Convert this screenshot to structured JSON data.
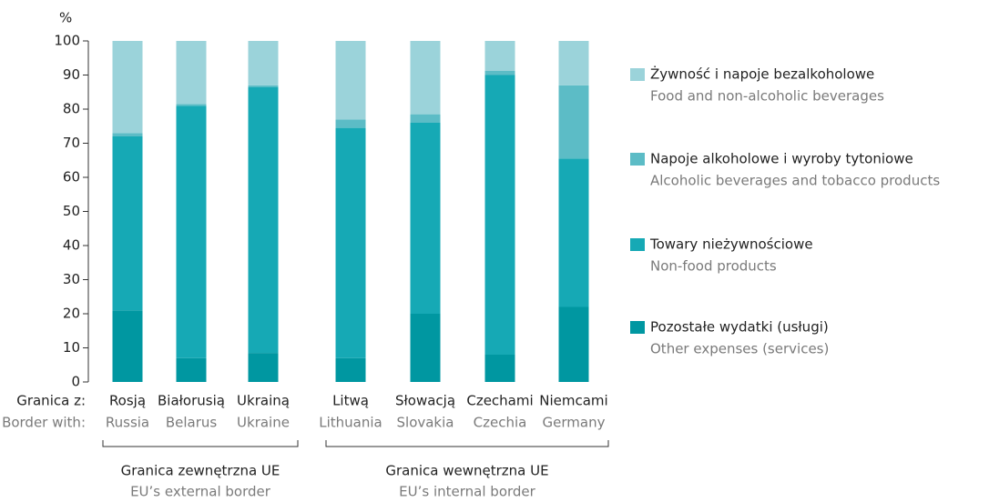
{
  "chart_data": {
    "type": "stacked_bar",
    "y_unit_label": "%",
    "categories": [
      "Rosją",
      "Białorusią",
      "Ukrainą",
      "Litwą",
      "Słowacją",
      "Czechami",
      "Niemcami"
    ],
    "categories_en": [
      "Russia",
      "Belarus",
      "Ukraine",
      "Lithuania",
      "Slovakia",
      "Czechia",
      "Germany"
    ],
    "row_label": "Granica z:",
    "row_label_en": "Border with:",
    "groups": [
      {
        "label": "Granica zewnętrzna UE",
        "label_en": "EU’s external border",
        "start": 0,
        "end": 2
      },
      {
        "label": "Granica wewnętrzna UE",
        "label_en": "EU’s internal border",
        "start": 3,
        "end": 6
      }
    ],
    "series": [
      {
        "name": "Pozostałe wydatki (usługi)",
        "name_en": "Other expenses (services)",
        "color": "#0097a1",
        "values": [
          21,
          7,
          8.5,
          7,
          20,
          8,
          22
        ]
      },
      {
        "name": "Towary nieżywnościowe",
        "name_en": "Non-food products",
        "color": "#16a9b5",
        "values": [
          51,
          74,
          78,
          67.5,
          56,
          82,
          43.5
        ]
      },
      {
        "name": "Napoje alkoholowe i wyroby tytoniowe",
        "name_en": "Alcoholic beverages and tobacco products",
        "color": "#5cbcc6",
        "values": [
          1,
          0.5,
          0.5,
          2.5,
          2.5,
          1.2,
          21.5
        ]
      },
      {
        "name": "Żywność i napoje bezalkoholowe",
        "name_en": "Food and non-alcoholic beverages",
        "color": "#9bd3da",
        "values": [
          27,
          18.5,
          13,
          23,
          21.5,
          8.8,
          13
        ]
      }
    ],
    "ylim": [
      0,
      100
    ],
    "yticks": [
      0,
      10,
      20,
      30,
      40,
      50,
      60,
      70,
      80,
      90,
      100
    ],
    "grid": false
  }
}
